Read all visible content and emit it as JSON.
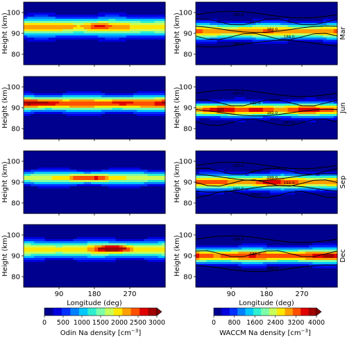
{
  "chart_data": {
    "type": "heatmap",
    "x_ticks": [
      90,
      180,
      270
    ],
    "x_label": "Longitude (deg)",
    "y_ticks": [
      80,
      90,
      100
    ],
    "y_label": "Height (km)",
    "ylim": [
      75,
      105
    ],
    "xlim": [
      0,
      360
    ],
    "months": [
      "Mar",
      "Jun",
      "Sep",
      "Dec"
    ],
    "panels": [
      {
        "dataset": "Odin",
        "month": "Mar",
        "peak_height_km": 93,
        "band_halfwidth_km": 4.2,
        "peak_density": 2100,
        "hotspots": [
          {
            "lon": 110,
            "h": 93.5,
            "value": 2300
          },
          {
            "lon": 190,
            "h": 93.5,
            "value": 2600
          }
        ]
      },
      {
        "dataset": "WACCM",
        "month": "Mar",
        "peak_height_km": 91,
        "band_halfwidth_km": 3.6,
        "peak_density": 3000,
        "hotspots": [
          {
            "lon": 120,
            "h": 91,
            "value": 3200
          }
        ],
        "contour_labels": [
          "190.0",
          "187.0",
          "182.0",
          "184.0",
          "190.0"
        ]
      },
      {
        "dataset": "Odin",
        "month": "Jun",
        "peak_height_km": 92,
        "band_halfwidth_km": 3.6,
        "peak_density": 2400,
        "hotspots": [
          {
            "lon": 15,
            "h": 92.5,
            "value": 3000
          },
          {
            "lon": 65,
            "h": 92.5,
            "value": 2900
          },
          {
            "lon": 250,
            "h": 92.5,
            "value": 2900
          }
        ]
      },
      {
        "dataset": "WACCM",
        "month": "Jun",
        "peak_height_km": 89,
        "band_halfwidth_km": 3.2,
        "peak_density": 3200,
        "hotspots": [
          {
            "lon": 60,
            "h": 89,
            "value": 3900
          },
          {
            "lon": 165,
            "h": 89,
            "value": 3600
          },
          {
            "lon": 280,
            "h": 89,
            "value": 3600
          }
        ],
        "contour_labels": [
          "187.0",
          "182.0",
          "182.0",
          "187.0"
        ]
      },
      {
        "dataset": "Odin",
        "month": "Sep",
        "peak_height_km": 92,
        "band_halfwidth_km": 3.1,
        "peak_density": 1800,
        "hotspots": [
          {
            "lon": 140,
            "h": 92,
            "value": 2500
          },
          {
            "lon": 190,
            "h": 92,
            "value": 2700
          }
        ]
      },
      {
        "dataset": "WACCM",
        "month": "Sep",
        "peak_height_km": 90,
        "band_halfwidth_km": 3.4,
        "peak_density": 3100,
        "hotspots": [
          {
            "lon": 190,
            "h": 90,
            "value": 3700
          }
        ],
        "contour_labels": [
          "186.0",
          "186.0",
          "199.0",
          "192.0",
          "192.0",
          "199.0"
        ]
      },
      {
        "dataset": "Odin",
        "month": "Dec",
        "peak_height_km": 93,
        "band_halfwidth_km": 3.8,
        "peak_density": 2000,
        "hotspots": [
          {
            "lon": 210,
            "h": 93.5,
            "value": 2900
          },
          {
            "lon": 245,
            "h": 93.5,
            "value": 3000
          }
        ]
      },
      {
        "dataset": "WACCM",
        "month": "Dec",
        "peak_height_km": 90,
        "band_halfwidth_km": 3.4,
        "peak_density": 3300,
        "hotspots": [
          {
            "lon": 250,
            "h": 90,
            "value": 3600
          },
          {
            "lon": 340,
            "h": 90,
            "value": 3700
          }
        ],
        "contour_labels": [
          "184.0",
          "186.0",
          "189.0"
        ]
      }
    ],
    "colorbars": [
      {
        "label": "Odin Na density [cm",
        "unit_exponent": "−3",
        "label_end": "]",
        "ticks": [
          "0",
          "500",
          "1000",
          "1500",
          "2000",
          "2500",
          "3000"
        ],
        "vmin": 0,
        "vmax": 3000
      },
      {
        "label": "WACCM Na density [cm",
        "unit_exponent": "−3",
        "label_end": "]",
        "ticks": [
          "0",
          "800",
          "1600",
          "2400",
          "3200",
          "4000"
        ],
        "vmin": 0,
        "vmax": 4000
      }
    ],
    "colormap": [
      "#00008f",
      "#0000e0",
      "#0030ff",
      "#0080ff",
      "#00c8ff",
      "#2ef0d0",
      "#7dffaa",
      "#c8ff5a",
      "#ffe800",
      "#ffa000",
      "#ff5000",
      "#e00000",
      "#a00000"
    ]
  }
}
